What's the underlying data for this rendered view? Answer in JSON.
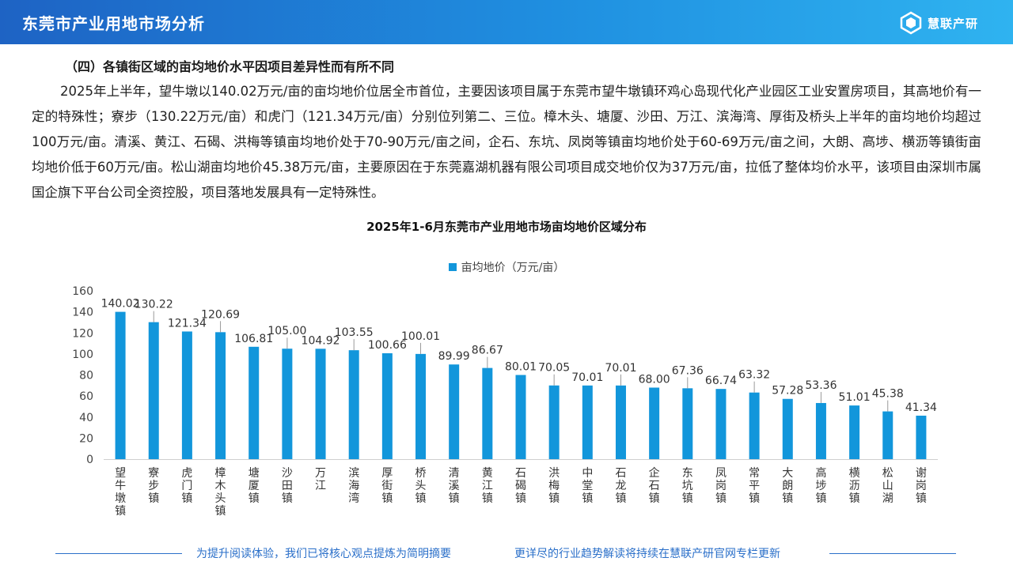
{
  "header": {
    "title": "东莞市产业用地市场分析",
    "logo_text": "慧联产研"
  },
  "section_heading": "（四）各镇街区域的亩均地价水平因项目差异性而有所不同",
  "paragraph": "2025年上半年，望牛墩以140.02万元/亩的亩均地价位居全市首位，主要因该项目属于东莞市望牛墩镇环鸡心岛现代化产业园区工业安置房项目，其高地价有一定的特殊性；寮步（130.22万元/亩）和虎门（121.34万元/亩）分别位列第二、三位。樟木头、塘厦、沙田、万江、滨海湾、厚街及桥头上半年的亩均地价均超过100万元/亩。清溪、黄江、石碣、洪梅等镇亩均地价处于70-90万元/亩之间，企石、东坑、凤岗等镇亩均地价处于60-69万元/亩之间，大朗、高埗、横沥等镇街亩均地价低于60万元/亩。松山湖亩均地价45.38万元/亩，主要原因在于东莞嘉湖机器有限公司项目成交地价仅为37万元/亩，拉低了整体均价水平，该项目由深圳市属国企旗下平台公司全资控股，项目落地发展具有一定特殊性。",
  "chart_data": {
    "type": "bar",
    "title": "2025年1-6月东莞市产业用地市场亩均地价区域分布",
    "categories": [
      "望牛墩镇",
      "寮步镇",
      "虎门镇",
      "樟木头镇",
      "塘厦镇",
      "沙田镇",
      "万江",
      "滨海湾",
      "厚街镇",
      "桥头镇",
      "清溪镇",
      "黄江镇",
      "石碣镇",
      "洪梅镇",
      "中堂镇",
      "石龙镇",
      "企石镇",
      "东坑镇",
      "凤岗镇",
      "常平镇",
      "大朗镇",
      "高埗镇",
      "横沥镇",
      "松山湖",
      "谢岗镇"
    ],
    "series": [
      {
        "name": "亩均地价（万元/亩）",
        "values": [
          140.02,
          130.22,
          121.34,
          120.69,
          106.81,
          105.0,
          104.92,
          103.55,
          100.66,
          100.01,
          89.99,
          86.67,
          80.01,
          70.05,
          70.01,
          70.01,
          68.0,
          67.36,
          66.74,
          63.32,
          57.28,
          53.36,
          51.01,
          45.38,
          41.34
        ],
        "labels": [
          "140.02",
          "130.22",
          "121.34",
          "120.69",
          "106.81",
          "105.00",
          "104.92",
          "103.55",
          "100.66",
          "100.01",
          "89.99",
          "86.67",
          "80.01",
          "70.05",
          "70.01",
          "70.01",
          "68.00",
          "67.36",
          "66.74",
          "63.32",
          "57.28",
          "53.36",
          "51.01",
          "45.38",
          "41.34"
        ]
      }
    ],
    "yticks": [
      "0",
      "20",
      "40",
      "60",
      "80",
      "100",
      "120",
      "140",
      "160"
    ],
    "ylim": [
      0,
      160
    ],
    "legend_position": "top-center",
    "grid": false,
    "bar_color": "#1296db"
  },
  "footer": {
    "left_text": "为提升阅读体验，我们已将核心观点提炼为简明摘要",
    "right_text": "更详尽的行业趋势解读将持续在慧联产研官网专栏更新"
  }
}
